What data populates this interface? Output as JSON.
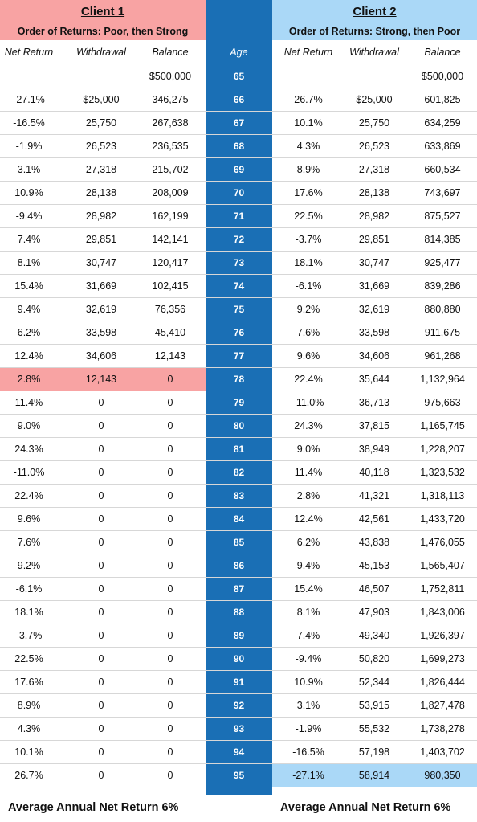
{
  "client1": {
    "title": "Client 1",
    "subtitle": "Order of Returns: Poor, then Strong"
  },
  "client2": {
    "title": "Client 2",
    "subtitle": "Order of Returns: Strong, then Poor"
  },
  "colors": {
    "client1_highlight": "#f8a3a3",
    "client2_highlight": "#aad8f7",
    "age_band": "#1a6fb5"
  },
  "columns": {
    "net_return": "Net Return",
    "withdrawal": "Withdrawal",
    "balance": "Balance",
    "age": "Age"
  },
  "rows": [
    {
      "c1": [
        "",
        "",
        "$500,000"
      ],
      "age": "65",
      "c2": [
        "",
        "",
        "$500,000"
      ]
    },
    {
      "c1": [
        "-27.1%",
        "$25,000",
        "346,275"
      ],
      "age": "66",
      "c2": [
        "26.7%",
        "$25,000",
        "601,825"
      ]
    },
    {
      "c1": [
        "-16.5%",
        "25,750",
        "267,638"
      ],
      "age": "67",
      "c2": [
        "10.1%",
        "25,750",
        "634,259"
      ]
    },
    {
      "c1": [
        "-1.9%",
        "26,523",
        "236,535"
      ],
      "age": "68",
      "c2": [
        "4.3%",
        "26,523",
        "633,869"
      ]
    },
    {
      "c1": [
        "3.1%",
        "27,318",
        "215,702"
      ],
      "age": "69",
      "c2": [
        "8.9%",
        "27,318",
        "660,534"
      ]
    },
    {
      "c1": [
        "10.9%",
        "28,138",
        "208,009"
      ],
      "age": "70",
      "c2": [
        "17.6%",
        "28,138",
        "743,697"
      ]
    },
    {
      "c1": [
        "-9.4%",
        "28,982",
        "162,199"
      ],
      "age": "71",
      "c2": [
        "22.5%",
        "28,982",
        "875,527"
      ]
    },
    {
      "c1": [
        "7.4%",
        "29,851",
        "142,141"
      ],
      "age": "72",
      "c2": [
        "-3.7%",
        "29,851",
        "814,385"
      ]
    },
    {
      "c1": [
        "8.1%",
        "30,747",
        "120,417"
      ],
      "age": "73",
      "c2": [
        "18.1%",
        "30,747",
        "925,477"
      ]
    },
    {
      "c1": [
        "15.4%",
        "31,669",
        "102,415"
      ],
      "age": "74",
      "c2": [
        "-6.1%",
        "31,669",
        "839,286"
      ]
    },
    {
      "c1": [
        "9.4%",
        "32,619",
        "76,356"
      ],
      "age": "75",
      "c2": [
        "9.2%",
        "32,619",
        "880,880"
      ]
    },
    {
      "c1": [
        "6.2%",
        "33,598",
        "45,410"
      ],
      "age": "76",
      "c2": [
        "7.6%",
        "33,598",
        "911,675"
      ]
    },
    {
      "c1": [
        "12.4%",
        "34,606",
        "12,143"
      ],
      "age": "77",
      "c2": [
        "9.6%",
        "34,606",
        "961,268"
      ]
    },
    {
      "c1": [
        "2.8%",
        "12,143",
        "0"
      ],
      "age": "78",
      "c2": [
        "22.4%",
        "35,644",
        "1,132,964"
      ],
      "hl1": true
    },
    {
      "c1": [
        "11.4%",
        "0",
        "0"
      ],
      "age": "79",
      "c2": [
        "-11.0%",
        "36,713",
        "975,663"
      ]
    },
    {
      "c1": [
        "9.0%",
        "0",
        "0"
      ],
      "age": "80",
      "c2": [
        "24.3%",
        "37,815",
        "1,165,745"
      ]
    },
    {
      "c1": [
        "24.3%",
        "0",
        "0"
      ],
      "age": "81",
      "c2": [
        "9.0%",
        "38,949",
        "1,228,207"
      ]
    },
    {
      "c1": [
        "-11.0%",
        "0",
        "0"
      ],
      "age": "82",
      "c2": [
        "11.4%",
        "40,118",
        "1,323,532"
      ]
    },
    {
      "c1": [
        "22.4%",
        "0",
        "0"
      ],
      "age": "83",
      "c2": [
        "2.8%",
        "41,321",
        "1,318,113"
      ]
    },
    {
      "c1": [
        "9.6%",
        "0",
        "0"
      ],
      "age": "84",
      "c2": [
        "12.4%",
        "42,561",
        "1,433,720"
      ]
    },
    {
      "c1": [
        "7.6%",
        "0",
        "0"
      ],
      "age": "85",
      "c2": [
        "6.2%",
        "43,838",
        "1,476,055"
      ]
    },
    {
      "c1": [
        "9.2%",
        "0",
        "0"
      ],
      "age": "86",
      "c2": [
        "9.4%",
        "45,153",
        "1,565,407"
      ]
    },
    {
      "c1": [
        "-6.1%",
        "0",
        "0"
      ],
      "age": "87",
      "c2": [
        "15.4%",
        "46,507",
        "1,752,811"
      ]
    },
    {
      "c1": [
        "18.1%",
        "0",
        "0"
      ],
      "age": "88",
      "c2": [
        "8.1%",
        "47,903",
        "1,843,006"
      ]
    },
    {
      "c1": [
        "-3.7%",
        "0",
        "0"
      ],
      "age": "89",
      "c2": [
        "7.4%",
        "49,340",
        "1,926,397"
      ]
    },
    {
      "c1": [
        "22.5%",
        "0",
        "0"
      ],
      "age": "90",
      "c2": [
        "-9.4%",
        "50,820",
        "1,699,273"
      ]
    },
    {
      "c1": [
        "17.6%",
        "0",
        "0"
      ],
      "age": "91",
      "c2": [
        "10.9%",
        "52,344",
        "1,826,444"
      ]
    },
    {
      "c1": [
        "8.9%",
        "0",
        "0"
      ],
      "age": "92",
      "c2": [
        "3.1%",
        "53,915",
        "1,827,478"
      ]
    },
    {
      "c1": [
        "4.3%",
        "0",
        "0"
      ],
      "age": "93",
      "c2": [
        "-1.9%",
        "55,532",
        "1,738,278"
      ]
    },
    {
      "c1": [
        "10.1%",
        "0",
        "0"
      ],
      "age": "94",
      "c2": [
        "-16.5%",
        "57,198",
        "1,403,702"
      ]
    },
    {
      "c1": [
        "26.7%",
        "0",
        "0"
      ],
      "age": "95",
      "c2": [
        "-27.1%",
        "58,914",
        "980,350"
      ],
      "hl2": true
    }
  ],
  "footer": {
    "client1": "Average Annual Net Return 6%",
    "client2": "Average Annual Net Return 6%"
  }
}
